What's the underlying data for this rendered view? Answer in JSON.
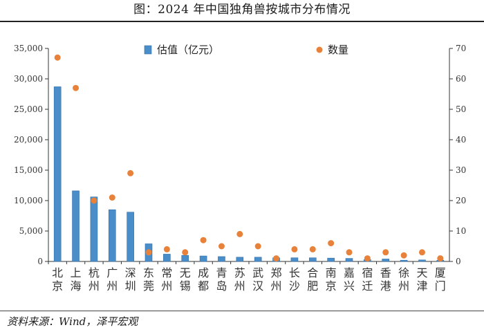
{
  "title": "图：2024 年中国独角兽按城市分布情况",
  "source": "资料来源：Wind，泽平宏观",
  "chart_data": {
    "type": "bar",
    "categories": [
      "北京",
      "上海",
      "杭州",
      "广州",
      "深圳",
      "东莞",
      "常州",
      "无锡",
      "成都",
      "青岛",
      "苏州",
      "武汉",
      "郑州",
      "长沙",
      "合肥",
      "南京",
      "嘉兴",
      "宿迁",
      "香港",
      "徐州",
      "天津",
      "厦门"
    ],
    "series": [
      {
        "name": "估值（亿元）",
        "type": "bar",
        "axis": "left",
        "color": "#4a8ec9",
        "values": [
          28700,
          11600,
          10600,
          8500,
          8100,
          2900,
          1200,
          1000,
          900,
          800,
          700,
          700,
          600,
          600,
          600,
          550,
          500,
          300,
          400,
          200,
          250,
          200
        ]
      },
      {
        "name": "数量",
        "type": "scatter",
        "axis": "right",
        "color": "#e8823a",
        "values": [
          67,
          57,
          20,
          21,
          29,
          3,
          4,
          3,
          7,
          5,
          9,
          5,
          1,
          4,
          4,
          6,
          3,
          1,
          3,
          2,
          3,
          1
        ]
      }
    ],
    "yleft": {
      "min": 0,
      "max": 35000,
      "ticks": [
        "0",
        "5,000",
        "10,000",
        "15,000",
        "20,000",
        "25,000",
        "30,000",
        "35,000"
      ]
    },
    "yright": {
      "min": 0,
      "max": 70,
      "ticks": [
        "0",
        "10",
        "20",
        "30",
        "40",
        "50",
        "60",
        "70"
      ]
    },
    "legend_position": "top"
  }
}
